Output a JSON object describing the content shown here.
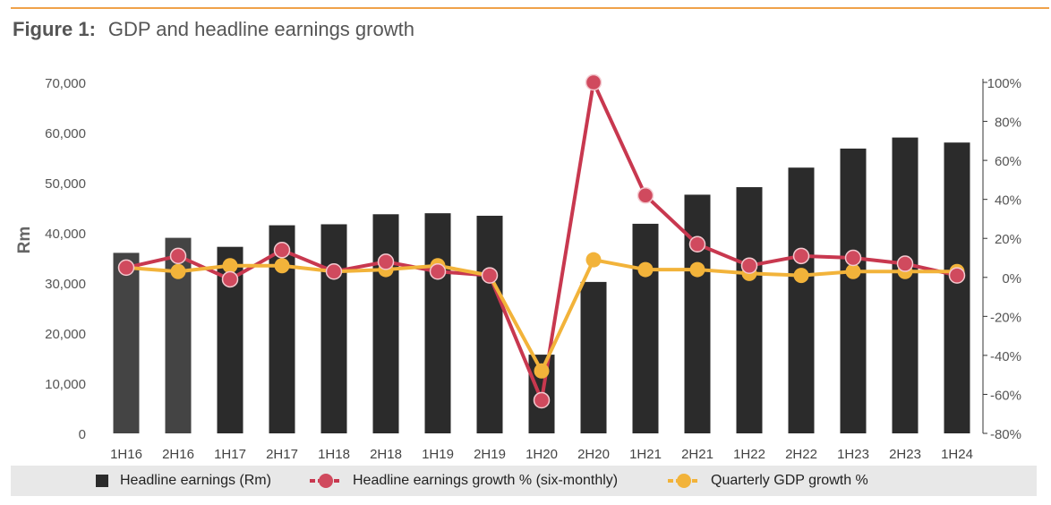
{
  "figure": {
    "label": "Figure 1:",
    "title": "GDP and headline earnings growth"
  },
  "colors": {
    "accent_rule": "#f0a24a",
    "bars_main": "#2b2b2b",
    "bars_early": "#444444",
    "headline_growth": "#c8384f",
    "headline_growth_marker": "#d04a5e",
    "gdp_growth": "#f2b33a",
    "legend_bg": "#e8e8e8"
  },
  "chart_data": {
    "type": "bar+line",
    "categories": [
      "1H16",
      "2H16",
      "1H17",
      "2H17",
      "1H18",
      "2H18",
      "1H19",
      "2H19",
      "1H20",
      "2H20",
      "1H21",
      "2H21",
      "1H22",
      "2H22",
      "1H23",
      "2H23",
      "1H24"
    ],
    "ylabel": "Rm",
    "y_left": {
      "lim": [
        0,
        70000
      ],
      "ticks": [
        0,
        10000,
        20000,
        30000,
        40000,
        50000,
        60000,
        70000
      ],
      "tick_labels": [
        "0",
        "10,000",
        "20,000",
        "30,000",
        "40,000",
        "50,000",
        "60,000",
        "70,000"
      ]
    },
    "y_right": {
      "lim": [
        -80,
        100
      ],
      "ticks": [
        -80,
        -60,
        -40,
        -20,
        0,
        20,
        40,
        60,
        80,
        100
      ],
      "tick_labels": [
        "-80%",
        "-60%",
        "-40%",
        "-20%",
        "0%",
        "20%",
        "40%",
        "60%",
        "80%",
        "100%"
      ]
    },
    "series": [
      {
        "name": "Headline earnings (Rm)",
        "kind": "bar",
        "axis": "left",
        "values": [
          36000,
          39000,
          37200,
          41500,
          41700,
          43700,
          43900,
          43400,
          15700,
          30200,
          41800,
          47600,
          49100,
          53000,
          56800,
          59000,
          58000
        ]
      },
      {
        "name": "Headline earnings growth % (six-monthly)",
        "kind": "line",
        "axis": "right",
        "values": [
          5,
          11,
          -1,
          14,
          3,
          8,
          3,
          1,
          -63,
          100,
          42,
          17,
          6,
          11,
          10,
          7,
          1
        ]
      },
      {
        "name": "Quarterly GDP growth %",
        "kind": "line",
        "axis": "right",
        "values": [
          5,
          3,
          6,
          6,
          3,
          4,
          6,
          1,
          -48,
          9,
          4,
          4,
          2,
          1,
          3,
          3,
          3
        ]
      }
    ],
    "grid": false,
    "legend_position": "bottom"
  }
}
